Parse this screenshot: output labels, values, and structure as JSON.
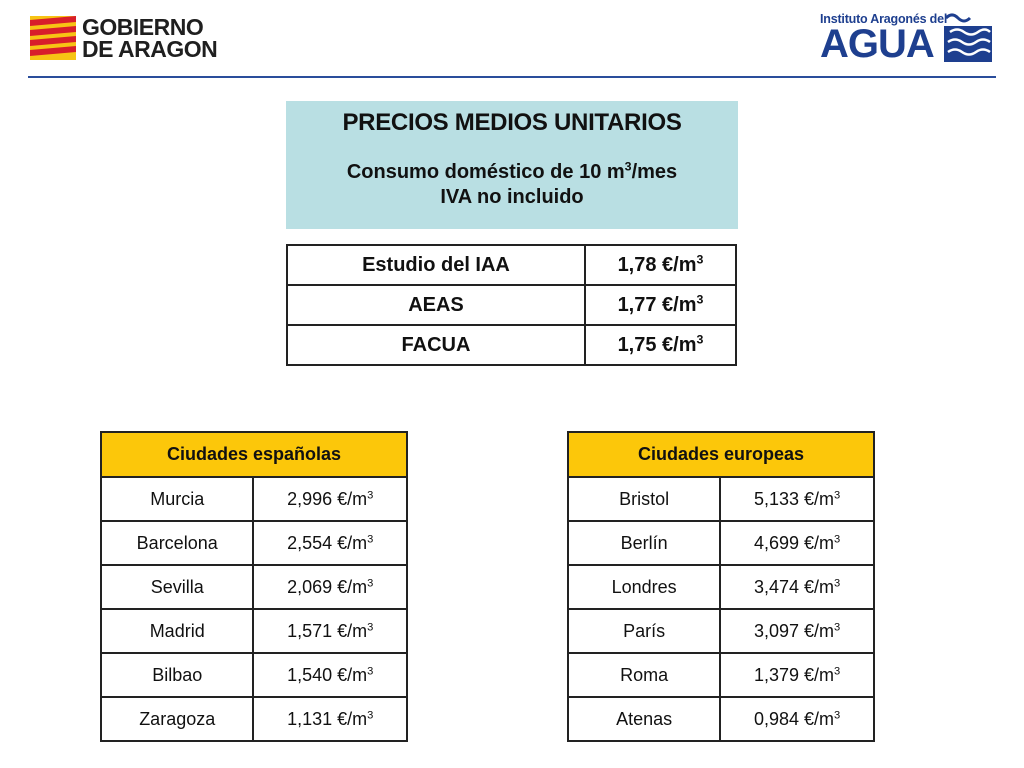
{
  "header": {
    "left_logo_line1": "GOBIERNO",
    "left_logo_line2": "DE ARAGON",
    "right_logo_small": "Instituto Aragonés del",
    "right_logo_big": "AGUA"
  },
  "colors": {
    "title_bg": "#b9dfe3",
    "table_header_bg": "#fcc70a",
    "brand_blue": "#1e3f8f",
    "flag_red": "#d81e2b",
    "flag_yellow": "#f7c414"
  },
  "title": {
    "main": "PRECIOS MEDIOS UNITARIOS",
    "sub1_prefix": "Consumo doméstico de 10 m",
    "sub1_sup": "3",
    "sub1_suffix": "/mes",
    "sub2": "IVA no incluido"
  },
  "studies": [
    {
      "name": "Estudio del IAA",
      "value": "1,78 €/m",
      "sup": "3"
    },
    {
      "name": "AEAS",
      "value": "1,77 €/m",
      "sup": "3"
    },
    {
      "name": "FACUA",
      "value": "1,75 €/m",
      "sup": "3"
    }
  ],
  "spanish": {
    "header": "Ciudades españolas",
    "rows": [
      {
        "city": "Murcia",
        "value": "2,996  €/m",
        "sup": "3"
      },
      {
        "city": "Barcelona",
        "value": "2,554  €/m",
        "sup": "3"
      },
      {
        "city": "Sevilla",
        "value": "2,069  €/m",
        "sup": "3"
      },
      {
        "city": "Madrid",
        "value": "1,571  €/m",
        "sup": "3"
      },
      {
        "city": "Bilbao",
        "value": "1,540  €/m",
        "sup": "3"
      },
      {
        "city": "Zaragoza",
        "value": "1,131  €/m",
        "sup": "3"
      }
    ]
  },
  "european": {
    "header": "Ciudades europeas",
    "rows": [
      {
        "city": "Bristol",
        "value": "5,133  €/m",
        "sup": "3"
      },
      {
        "city": "Berlín",
        "value": "4,699  €/m",
        "sup": "3"
      },
      {
        "city": "Londres",
        "value": "3,474  €/m",
        "sup": "3"
      },
      {
        "city": "París",
        "value": "3,097  €/m",
        "sup": "3"
      },
      {
        "city": "Roma",
        "value": "1,379  €/m",
        "sup": "3"
      },
      {
        "city": "Atenas",
        "value": "0,984  €/m",
        "sup": "3"
      }
    ]
  }
}
